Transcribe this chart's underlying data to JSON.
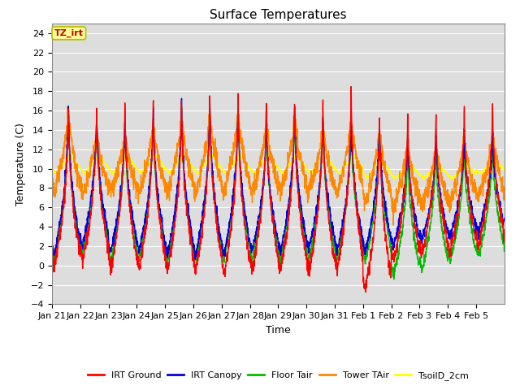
{
  "title": "Surface Temperatures",
  "xlabel": "Time",
  "ylabel": "Temperature (C)",
  "ylim": [
    -4,
    25
  ],
  "yticks": [
    -4,
    -2,
    0,
    2,
    4,
    6,
    8,
    10,
    12,
    14,
    16,
    18,
    20,
    22,
    24
  ],
  "n_days": 16,
  "series": {
    "IRT Ground": {
      "color": "#FF0000",
      "lw": 1.0
    },
    "IRT Canopy": {
      "color": "#0000DD",
      "lw": 1.0
    },
    "Floor Tair": {
      "color": "#00BB00",
      "lw": 1.0
    },
    "Tower TAir": {
      "color": "#FF8800",
      "lw": 1.0
    },
    "TsoilD_2cm": {
      "color": "#FFFF00",
      "lw": 1.2
    }
  },
  "annotation_text": "TZ_irt",
  "annotation_bg": "#FFFF99",
  "annotation_border": "#BBBB00",
  "annotation_text_color": "#CC0000",
  "background_color": "#DDDDDD",
  "title_fontsize": 11,
  "axis_label_fontsize": 9,
  "tick_label_fontsize": 8
}
